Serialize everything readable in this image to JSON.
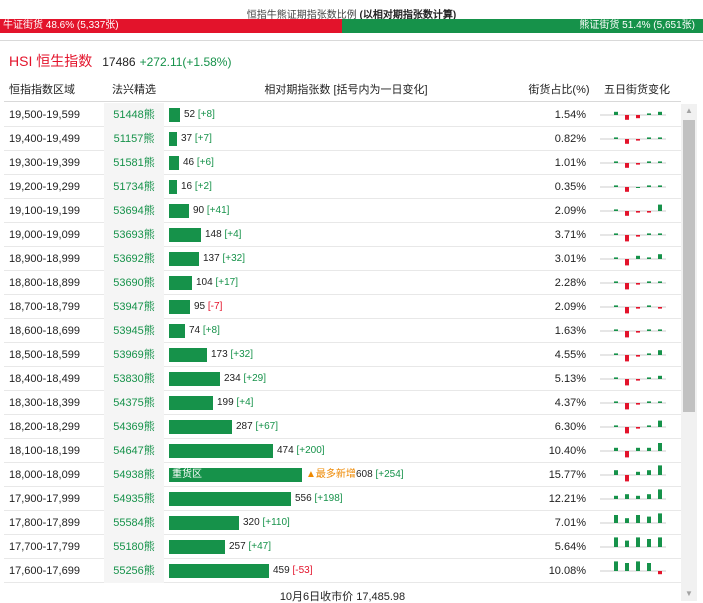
{
  "caption": {
    "prefix": "恒指牛熊证期指张数比例",
    "suffix": "(以相对期指张数计算)"
  },
  "ratio": {
    "bull_label": "牛证街货 48.6% (5,337张)",
    "bear_label": "熊证街货 51.4% (5,651张)",
    "bull_fraction": 0.486,
    "bull_color": "#e3132b",
    "bear_color": "#16924a"
  },
  "index": {
    "title": "HSI 恒生指数",
    "price": "17486",
    "change": "+272.11(+1.58%)"
  },
  "columns": {
    "range": "恒指指数区域",
    "code": "法兴精选",
    "count": "相对期指张数 [括号内为一日变化]",
    "pct": "街货占比(%)",
    "trend": "五日街货变化"
  },
  "rows": [
    {
      "range": "19,500-19,599",
      "code": "51448熊",
      "count": 52,
      "count_text": "52",
      "change": "[+8]",
      "pct": "1.54%",
      "trend": [
        2,
        -3,
        -2,
        1,
        2
      ]
    },
    {
      "range": "19,400-19,499",
      "code": "51157熊",
      "count": 37,
      "count_text": "37",
      "change": "[+7]",
      "pct": "0.82%",
      "trend": [
        1,
        -3,
        -1,
        1,
        1
      ]
    },
    {
      "range": "19,300-19,399",
      "code": "51581熊",
      "count": 46,
      "count_text": "46",
      "change": "[+6]",
      "pct": "1.01%",
      "trend": [
        1,
        -3,
        -1,
        1,
        1
      ]
    },
    {
      "range": "19,200-19,299",
      "code": "51734熊",
      "count": 16,
      "count_text": "16",
      "change": "[+2]",
      "pct": "0.35%",
      "trend": [
        1,
        -3,
        0,
        1,
        1
      ]
    },
    {
      "range": "19,100-19,199",
      "code": "53694熊",
      "count": 90,
      "count_text": "90",
      "change": "[+41]",
      "pct": "2.09%",
      "trend": [
        1,
        -3,
        -1,
        -1,
        4
      ]
    },
    {
      "range": "19,000-19,099",
      "code": "53693熊",
      "count": 148,
      "count_text": "148",
      "change": "[+4]",
      "pct": "3.71%",
      "trend": [
        1,
        -4,
        -1,
        1,
        1
      ]
    },
    {
      "range": "18,900-18,999",
      "code": "53692熊",
      "count": 137,
      "count_text": "137",
      "change": "[+32]",
      "pct": "3.01%",
      "trend": [
        1,
        -4,
        2,
        1,
        3
      ]
    },
    {
      "range": "18,800-18,899",
      "code": "53690熊",
      "count": 104,
      "count_text": "104",
      "change": "[+17]",
      "pct": "2.28%",
      "trend": [
        1,
        -4,
        -1,
        1,
        1
      ]
    },
    {
      "range": "18,700-18,799",
      "code": "53947熊",
      "count": 95,
      "count_text": "95",
      "change": "[-7]",
      "pct": "2.09%",
      "trend": [
        1,
        -4,
        -1,
        1,
        -1
      ]
    },
    {
      "range": "18,600-18,699",
      "code": "53945熊",
      "count": 74,
      "count_text": "74",
      "change": "[+8]",
      "pct": "1.63%",
      "trend": [
        1,
        -4,
        -1,
        1,
        1
      ]
    },
    {
      "range": "18,500-18,599",
      "code": "53969熊",
      "count": 173,
      "count_text": "173",
      "change": "[+32]",
      "pct": "4.55%",
      "trend": [
        1,
        -4,
        -1,
        1,
        3
      ]
    },
    {
      "range": "18,400-18,499",
      "code": "53830熊",
      "count": 234,
      "count_text": "234",
      "change": "[+29]",
      "pct": "5.13%",
      "trend": [
        1,
        -4,
        -1,
        1,
        2
      ]
    },
    {
      "range": "18,300-18,399",
      "code": "54375熊",
      "count": 199,
      "count_text": "199",
      "change": "[+4]",
      "pct": "4.37%",
      "trend": [
        1,
        -4,
        -1,
        1,
        1
      ]
    },
    {
      "range": "18,200-18,299",
      "code": "54369熊",
      "count": 287,
      "count_text": "287",
      "change": "[+67]",
      "pct": "6.30%",
      "trend": [
        1,
        -4,
        -1,
        1,
        4
      ]
    },
    {
      "range": "18,100-18,199",
      "code": "54647熊",
      "count": 474,
      "count_text": "474",
      "change": "[+200]",
      "pct": "10.40%",
      "trend": [
        2,
        -4,
        2,
        2,
        5
      ]
    },
    {
      "range": "18,000-18,099",
      "code": "54938熊",
      "count": 608,
      "count_text": "608",
      "change": "[+254]",
      "pct": "15.77%",
      "trend": [
        3,
        -4,
        2,
        3,
        6
      ],
      "zone_label": "重货区",
      "hot_label": "▲最多新增"
    },
    {
      "range": "17,900-17,999",
      "code": "54935熊",
      "count": 556,
      "count_text": "556",
      "change": "[+198]",
      "pct": "12.21%",
      "trend": [
        2,
        3,
        2,
        3,
        6
      ]
    },
    {
      "range": "17,800-17,899",
      "code": "55584熊",
      "count": 320,
      "count_text": "320",
      "change": "[+110]",
      "pct": "7.01%",
      "trend": [
        5,
        3,
        5,
        4,
        6
      ]
    },
    {
      "range": "17,700-17,799",
      "code": "55180熊",
      "count": 257,
      "count_text": "257",
      "change": "[+47]",
      "pct": "5.64%",
      "trend": [
        6,
        4,
        6,
        5,
        6
      ]
    },
    {
      "range": "17,600-17,699",
      "code": "55256熊",
      "count": 459,
      "count_text": "459",
      "change": "[-53]",
      "pct": "10.08%",
      "trend": [
        6,
        5,
        6,
        5,
        -2
      ]
    }
  ],
  "scale_max_count": 608,
  "footer": "10月6日收市价 17,485.98"
}
